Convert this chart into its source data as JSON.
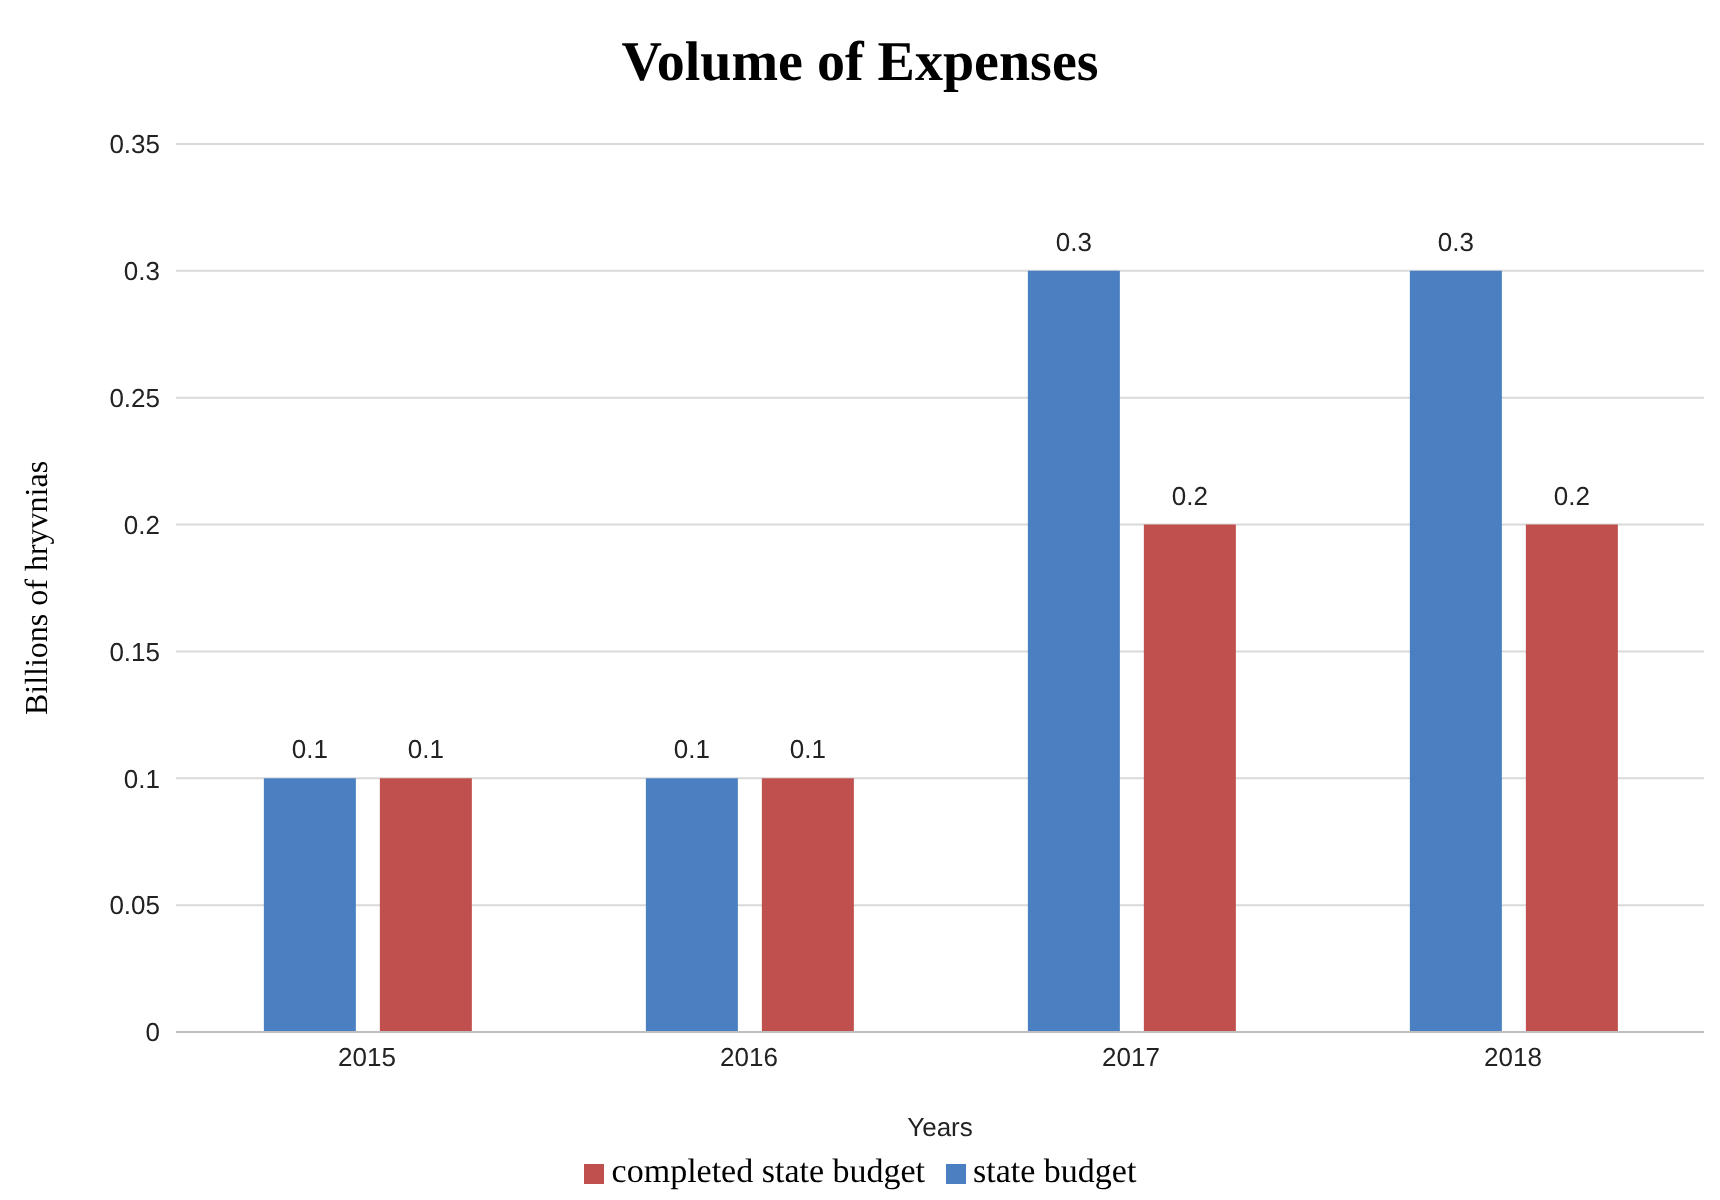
{
  "chart_data": {
    "type": "bar",
    "title": "Volume of Expenses",
    "xlabel": "Years",
    "ylabel": "Billions of hryvnias",
    "categories": [
      "2015",
      "2016",
      "2017",
      "2018"
    ],
    "series": [
      {
        "name": "state budget",
        "color": "#4a7fc1",
        "values": [
          0.1,
          0.1,
          0.3,
          0.3
        ]
      },
      {
        "name": "completed state budget",
        "color": "#c0504d",
        "values": [
          0.1,
          0.1,
          0.2,
          0.2
        ]
      }
    ],
    "ylim": [
      0,
      0.35
    ],
    "yticks": [
      0,
      0.05,
      0.1,
      0.15,
      0.2,
      0.25,
      0.3,
      0.35
    ],
    "grid": "y",
    "legend": "bottom",
    "data_labels": true
  }
}
